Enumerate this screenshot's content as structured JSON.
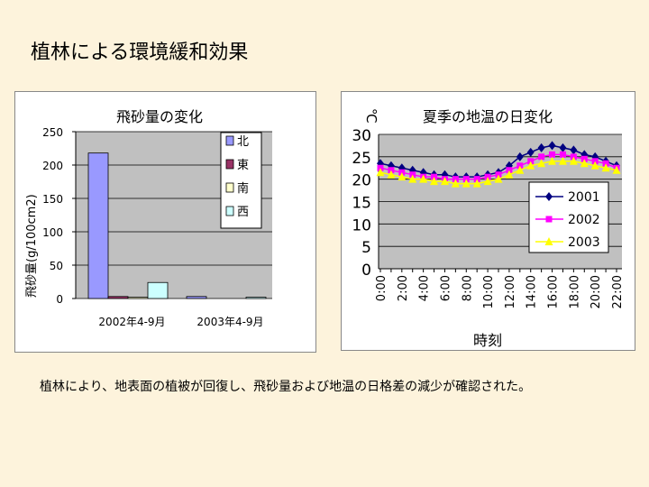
{
  "slide": {
    "title": "植林による環境緩和効果",
    "caption": "植林により、地表面の植被が回復し、飛砂量および地温の日格差の減少が確認された。"
  },
  "colors": {
    "background": "#fdf3dc",
    "plot_area": "#c0c0c0",
    "north": "#9999ff",
    "east": "#993366",
    "south": "#ffffcc",
    "west": "#ccffff",
    "s2001": "#000080",
    "s2002": "#ff00ff",
    "s2003": "#ffff00"
  },
  "chart_data": [
    {
      "type": "bar",
      "title": "飛砂量の変化",
      "ylabel": "飛砂量(g/100cm2)",
      "xlabel": "",
      "categories": [
        "2002年4-9月",
        "2003年4-9月"
      ],
      "series": [
        {
          "name": "北",
          "values": [
            218,
            3
          ]
        },
        {
          "name": "東",
          "values": [
            3,
            0
          ]
        },
        {
          "name": "南",
          "values": [
            2,
            0
          ]
        },
        {
          "name": "西",
          "values": [
            24,
            2
          ]
        }
      ],
      "ylim": [
        0,
        250
      ],
      "yticks": [
        "0",
        "50",
        "100",
        "150",
        "200",
        "250"
      ],
      "grid": true,
      "legend": "top-right"
    },
    {
      "type": "line",
      "title": "夏季の地温の日変化",
      "ylabel": "℃",
      "xlabel": "時刻",
      "x": [
        "0:00",
        "1:00",
        "2:00",
        "3:00",
        "4:00",
        "5:00",
        "6:00",
        "7:00",
        "8:00",
        "9:00",
        "10:00",
        "11:00",
        "12:00",
        "13:00",
        "14:00",
        "15:00",
        "16:00",
        "17:00",
        "18:00",
        "19:00",
        "20:00",
        "21:00",
        "22:00"
      ],
      "xticks": [
        "0:00",
        "2:00",
        "4:00",
        "6:00",
        "8:00",
        "10:00",
        "12:00",
        "14:00",
        "16:00",
        "18:00",
        "20:00",
        "22:00"
      ],
      "series": [
        {
          "name": "2001",
          "values": [
            23.5,
            23,
            22.5,
            22,
            21.5,
            21,
            21,
            20.5,
            20.5,
            20.5,
            21,
            21.5,
            23,
            25,
            26,
            27,
            27.5,
            27,
            26.5,
            25.5,
            25,
            24,
            23
          ]
        },
        {
          "name": "2002",
          "values": [
            22.5,
            22,
            21.5,
            21,
            20.5,
            20.5,
            20,
            20,
            20,
            20,
            20.5,
            21,
            22,
            23,
            24,
            25,
            25.5,
            25.5,
            25,
            24.5,
            24,
            23.5,
            22.5
          ]
        },
        {
          "name": "2003",
          "values": [
            21.5,
            21,
            20.5,
            20,
            20,
            19.5,
            19.5,
            19,
            19,
            19,
            19.5,
            20,
            21,
            22,
            23,
            23.5,
            24,
            24,
            24,
            23.5,
            23,
            22.5,
            22
          ]
        }
      ],
      "ylim": [
        0,
        30
      ],
      "yticks": [
        "0",
        "5",
        "10",
        "15",
        "20",
        "25",
        "30"
      ],
      "grid": true,
      "legend": "bottom-right"
    }
  ]
}
